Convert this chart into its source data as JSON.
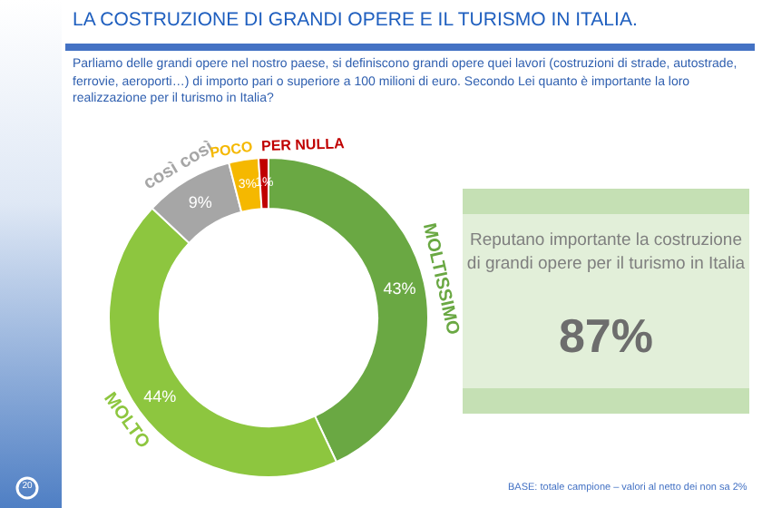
{
  "chart_data": {
    "type": "donut",
    "title": "LA COSTRUZIONE DI GRANDI OPERE E IL TURISMO IN ITALIA.",
    "subtitle": "Parliamo delle grandi opere nel nostro paese, si definiscono grandi opere quei lavori (costruzioni di strade, autostrade, ferrovie, aeroporti…) di importo pari o superiore a 100 milioni di euro. Secondo Lei quanto è importante la loro realizzazione per il turismo in Italia?",
    "categories": [
      "MOLTISSIMO",
      "MOLTO",
      "così così",
      "POCO",
      "PER NULLA"
    ],
    "values": [
      43,
      44,
      9,
      3,
      1
    ],
    "value_labels": [
      "43%",
      "44%",
      "9%",
      "3%",
      "1%"
    ],
    "colors": [
      "#6aa843",
      "#8dc63f",
      "#a6a6a6",
      "#f5b800",
      "#c00000"
    ],
    "annotations": [
      "Reputano importante la costruzione di grandi opere per il turismo in Italia",
      "87%",
      "BASE: totale campione – valori al netto dei non sa 2%",
      "20"
    ]
  }
}
